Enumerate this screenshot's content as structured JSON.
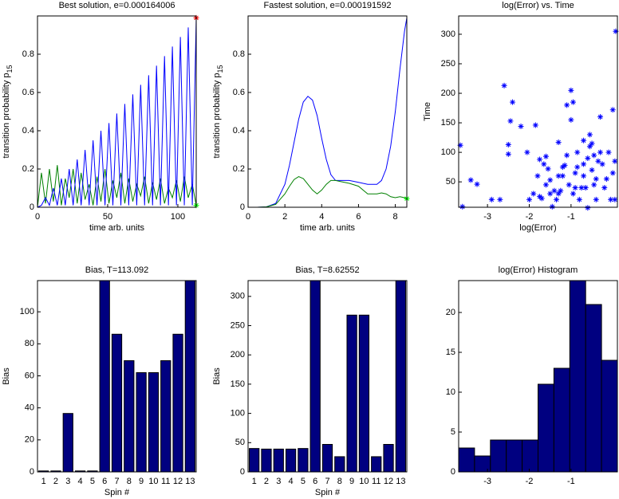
{
  "chart_data": [
    {
      "type": "line",
      "title": "Best solution, e=0.000164006",
      "xlabel": "time arb. units",
      "ylabel": "transition probability p",
      "ylabel_sub": "15",
      "xlim": [
        0,
        113.092
      ],
      "ylim": [
        0,
        1
      ],
      "xticks": [
        0,
        50,
        100
      ],
      "yticks": [
        0,
        0.2,
        0.4,
        0.6,
        0.8
      ],
      "x": [
        0,
        2.8,
        5.7,
        8.5,
        11.3,
        14.1,
        17.0,
        19.8,
        22.6,
        25.4,
        28.3,
        31.1,
        33.9,
        36.8,
        39.6,
        42.4,
        45.2,
        48.1,
        50.9,
        53.7,
        56.5,
        59.4,
        62.2,
        65.0,
        67.9,
        70.7,
        73.5,
        76.3,
        79.2,
        82.0,
        84.8,
        87.6,
        90.5,
        93.3,
        96.1,
        99.0,
        101.8,
        104.6,
        107.4,
        110.3,
        113.092
      ],
      "series": [
        {
          "color": "#008000",
          "end_marker": "#00ff00",
          "values": [
            0,
            0.18,
            0.02,
            0.2,
            0.03,
            0.22,
            0.01,
            0.15,
            0.05,
            0.2,
            0.02,
            0.18,
            0.04,
            0.12,
            0.01,
            0.16,
            0.03,
            0.2,
            0.02,
            0.14,
            0.05,
            0.18,
            0.02,
            0.15,
            0.03,
            0.12,
            0.06,
            0.16,
            0.02,
            0.13,
            0.04,
            0.15,
            0.02,
            0.1,
            0.05,
            0.14,
            0.03,
            0.16,
            0.05,
            0.12,
            0.01
          ]
        },
        {
          "color": "#0000ff",
          "end_marker": "#ff0000",
          "values": [
            0,
            0.01,
            0.05,
            0.01,
            0.1,
            0.01,
            0.15,
            0.01,
            0.2,
            0.01,
            0.25,
            0.01,
            0.3,
            0.01,
            0.35,
            0.01,
            0.4,
            0.01,
            0.44,
            0.01,
            0.49,
            0.01,
            0.54,
            0.01,
            0.59,
            0.01,
            0.64,
            0.01,
            0.69,
            0.01,
            0.74,
            0.01,
            0.79,
            0.01,
            0.84,
            0.01,
            0.89,
            0.01,
            0.94,
            0.01,
            0.99
          ]
        }
      ]
    },
    {
      "type": "line",
      "title": "Fastest solution, e=0.000191592",
      "xlabel": "time arb. units",
      "ylabel": "transition probability p",
      "ylabel_sub": "15",
      "xlim": [
        0,
        8.62552
      ],
      "ylim": [
        0,
        1
      ],
      "xticks": [
        0,
        2,
        4,
        6,
        8
      ],
      "yticks": [
        0,
        0.2,
        0.4,
        0.6,
        0.8
      ],
      "x": [
        0,
        0.5,
        1,
        1.5,
        2,
        2.25,
        2.5,
        2.75,
        3,
        3.25,
        3.5,
        3.75,
        4,
        4.25,
        4.5,
        4.75,
        5,
        5.5,
        6,
        6.5,
        7,
        7.25,
        7.5,
        7.75,
        8,
        8.25,
        8.5,
        8.62552
      ],
      "series": [
        {
          "color": "#0000ff",
          "values": [
            0,
            0,
            0.002,
            0.02,
            0.12,
            0.22,
            0.34,
            0.46,
            0.55,
            0.58,
            0.56,
            0.48,
            0.36,
            0.25,
            0.17,
            0.14,
            0.14,
            0.14,
            0.13,
            0.12,
            0.12,
            0.14,
            0.2,
            0.32,
            0.5,
            0.72,
            0.92,
            0.99
          ]
        },
        {
          "color": "#008000",
          "end_marker": "#00ff00",
          "values": [
            0,
            0,
            0.002,
            0.015,
            0.07,
            0.11,
            0.145,
            0.16,
            0.15,
            0.12,
            0.09,
            0.07,
            0.09,
            0.12,
            0.14,
            0.14,
            0.135,
            0.125,
            0.11,
            0.07,
            0.07,
            0.075,
            0.07,
            0.055,
            0.05,
            0.055,
            0.05,
            0.045
          ]
        }
      ]
    },
    {
      "type": "scatter",
      "title": "log(Error) vs. Time",
      "xlabel": "log(Error)",
      "ylabel": "Time",
      "color": "#0000ff",
      "xlim": [
        -3.69,
        0.11
      ],
      "ylim": [
        7,
        331
      ],
      "xticks": [
        -3,
        -2,
        -1
      ],
      "yticks": [
        50,
        100,
        150,
        200,
        250,
        300
      ],
      "x": [
        -3.65,
        -3.6,
        -3.4,
        -3.25,
        -2.9,
        -2.7,
        -2.6,
        -2.5,
        -2.5,
        -2.45,
        -2.4,
        -2.2,
        -2.05,
        -1.9,
        -1.85,
        -1.8,
        -1.75,
        -1.7,
        -1.65,
        -1.6,
        -1.55,
        -1.5,
        -1.5,
        -1.45,
        -1.4,
        -1.35,
        -1.3,
        -1.3,
        -1.25,
        -1.2,
        -1.2,
        -1.15,
        -1.1,
        -1.05,
        -1.0,
        -1.0,
        -0.95,
        -0.9,
        -0.9,
        -0.85,
        -0.85,
        -0.8,
        -0.75,
        -0.7,
        -0.7,
        -0.65,
        -0.6,
        -0.6,
        -0.55,
        -0.55,
        -0.5,
        -0.5,
        -0.45,
        -0.4,
        -0.4,
        -0.35,
        -0.3,
        -0.3,
        -0.25,
        -0.2,
        -0.15,
        -0.1,
        -0.05,
        0.0,
        0.0,
        0.05,
        0.07,
        0.05,
        -1.3,
        -1.6,
        -1.75,
        -2.0,
        -1.1,
        -0.7,
        -0.45,
        -0.95
      ],
      "values": [
        112,
        8,
        53,
        46,
        20,
        20,
        213,
        97,
        113,
        153,
        185,
        144,
        100,
        30,
        146,
        60,
        88,
        22,
        80,
        93,
        72,
        53,
        30,
        8,
        35,
        20,
        30,
        117,
        35,
        60,
        75,
        78,
        180,
        45,
        205,
        155,
        185,
        40,
        65,
        100,
        75,
        20,
        40,
        60,
        80,
        40,
        6,
        90,
        130,
        110,
        70,
        115,
        95,
        55,
        20,
        85,
        160,
        100,
        80,
        40,
        55,
        100,
        20,
        65,
        172,
        85,
        305,
        20,
        60,
        45,
        25,
        20,
        95,
        120,
        45,
        30
      ]
    },
    {
      "type": "bar",
      "title": "Bias, T=113.092",
      "xlabel": "Spin #",
      "ylabel": "Bias",
      "color": "#000080",
      "categories": [
        "1",
        "2",
        "3",
        "4",
        "5",
        "6",
        "7",
        "8",
        "9",
        "10",
        "11",
        "12",
        "13"
      ],
      "values": [
        0.6,
        0.6,
        36.5,
        0.6,
        0.6,
        119.5,
        86,
        69.5,
        62,
        62,
        69.5,
        86,
        119.5
      ],
      "ylim": [
        0,
        119.5
      ],
      "yticks": [
        0,
        20,
        40,
        60,
        80,
        100
      ]
    },
    {
      "type": "bar",
      "title": "Bias, T=8.62552",
      "xlabel": "Spin #",
      "ylabel": "Bias",
      "color": "#000080",
      "categories": [
        "1",
        "2",
        "3",
        "4",
        "5",
        "6",
        "7",
        "8",
        "9",
        "10",
        "11",
        "12",
        "13"
      ],
      "values": [
        40,
        39,
        39,
        39,
        40,
        327,
        47,
        26,
        268,
        268,
        26,
        47,
        327
      ],
      "ylim": [
        0,
        327
      ],
      "yticks": [
        0,
        50,
        100,
        150,
        200,
        250,
        300
      ]
    },
    {
      "type": "histogram",
      "title": "log(Error) Histogram",
      "color": "#000080",
      "bins": [
        -3.69,
        -3.31,
        -2.93,
        -2.55,
        -2.17,
        -1.79,
        -1.41,
        -1.03,
        -0.65,
        -0.27,
        0.11
      ],
      "values": [
        3,
        2,
        4,
        4,
        4,
        11,
        13,
        24,
        21,
        14
      ],
      "xlim": [
        -3.69,
        0.11
      ],
      "ylim": [
        0,
        24
      ],
      "xticks": [
        -3,
        -2,
        -1
      ],
      "yticks": [
        0,
        5,
        10,
        15,
        20
      ]
    }
  ]
}
